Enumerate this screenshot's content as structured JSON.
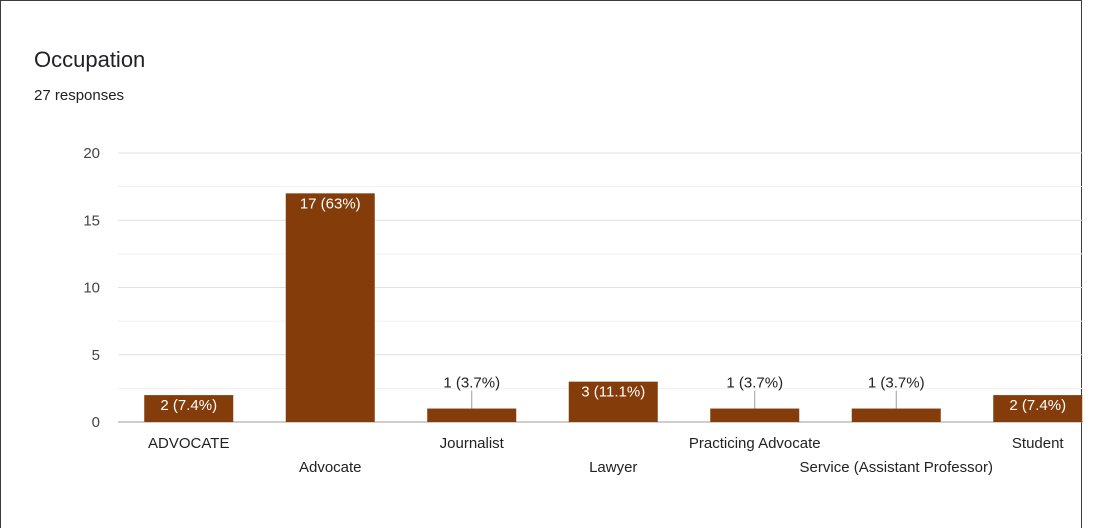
{
  "card": {
    "title": "Occupation",
    "subtitle": "27 responses"
  },
  "colors": {
    "bar": "#843c0b",
    "grid_major": "#e0e0e0",
    "grid_minor": "#f1f1f1",
    "label_inside": "#ffffff",
    "label_outside": "#222222"
  },
  "chart_data": {
    "type": "bar",
    "title": "Occupation",
    "subtitle": "27 responses",
    "categories": [
      "ADVOCATE",
      "Advocate",
      "Journalist",
      "Lawyer",
      "Practicing Advocate",
      "Service (Assistant Professor)",
      "Student"
    ],
    "values": [
      2,
      17,
      1,
      3,
      1,
      1,
      2
    ],
    "data_labels": [
      "2 (7.4%)",
      "17 (63%)",
      "1 (3.7%)",
      "3 (11.1%)",
      "1 (3.7%)",
      "1 (3.7%)",
      "2 (7.4%)"
    ],
    "ylim": [
      0,
      20
    ],
    "yticks": [
      0,
      5,
      10,
      15,
      20
    ],
    "grid": true,
    "legend": "none",
    "xlabel": "",
    "ylabel": ""
  }
}
